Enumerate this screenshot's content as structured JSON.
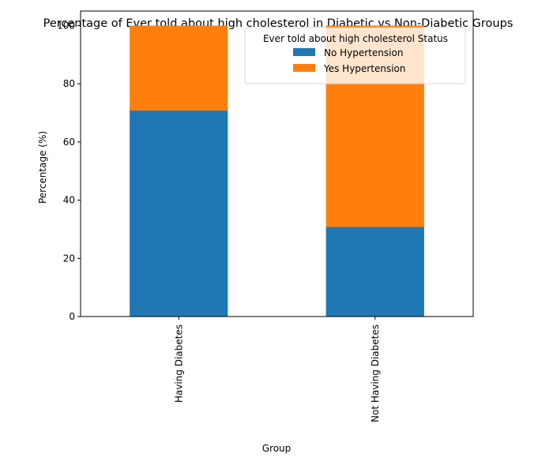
{
  "chart_data": {
    "type": "bar",
    "stacked": true,
    "title": "Percentage of Ever told about high cholesterol in Diabetic vs Non-Diabetic Groups",
    "xlabel": "Group",
    "ylabel": "Percentage (%)",
    "categories": [
      "Having Diabetes",
      "Not Having Diabetes"
    ],
    "series": [
      {
        "name": "No Hypertension",
        "values": [
          70.8,
          30.8
        ],
        "color": "#1f77b4"
      },
      {
        "name": "Yes Hypertension",
        "values": [
          29.2,
          69.2
        ],
        "color": "#ff7f0e"
      }
    ],
    "ylim": [
      0,
      105
    ],
    "yticks": [
      "0",
      "20",
      "40",
      "60",
      "80",
      "100"
    ],
    "grid": false,
    "legend": {
      "title": "Ever told about high cholesterol Status",
      "placement": "top-right"
    }
  }
}
